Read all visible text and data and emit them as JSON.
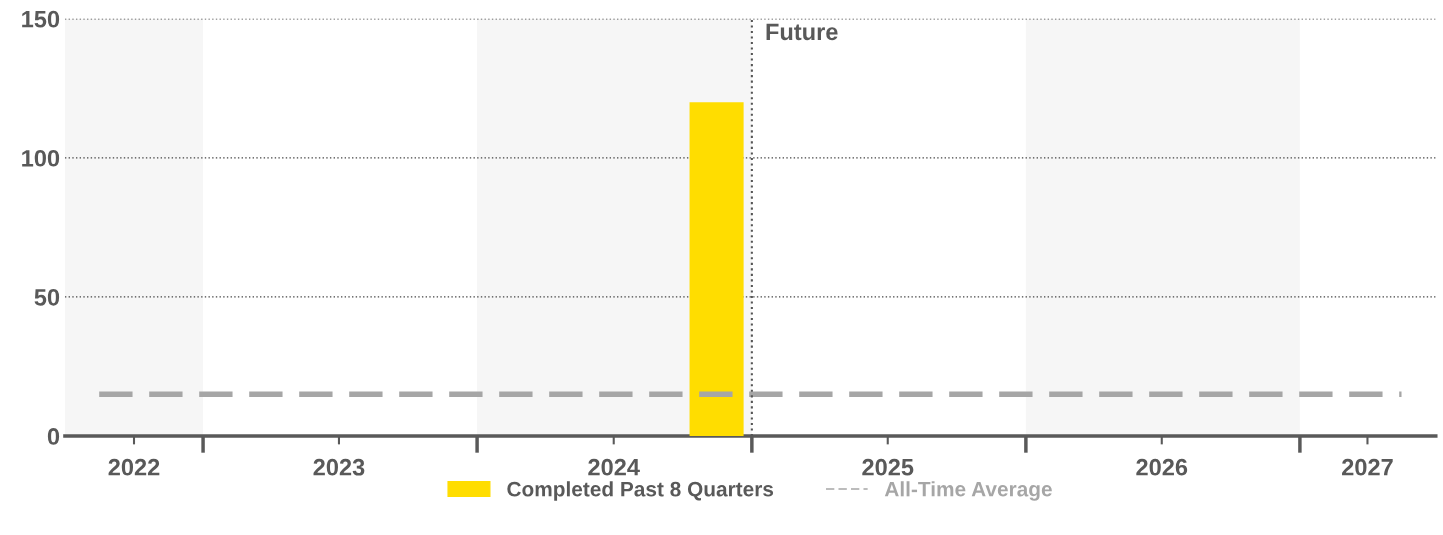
{
  "chart_data": {
    "type": "bar",
    "x": [
      "2024-11-15"
    ],
    "series": [
      {
        "name": "Completed Past 8 Quarters",
        "color": "#ffdd00",
        "values": [
          120
        ]
      }
    ],
    "xlim": [
      "2022-07-01",
      "2027-07-01"
    ],
    "xticks": [
      {
        "value": "2022-10-01",
        "label": "2022"
      },
      {
        "value": "2023-07-01",
        "label": "2023"
      },
      {
        "value": "2024-07-01",
        "label": "2024"
      },
      {
        "value": "2025-07-01",
        "label": "2025"
      },
      {
        "value": "2026-07-01",
        "label": "2026"
      },
      {
        "value": "2027-04-01",
        "label": "2027"
      }
    ],
    "ylim": [
      0,
      150
    ],
    "yticks": [
      0,
      50,
      100,
      150
    ],
    "grid": "y",
    "legend": "bottom",
    "ref_lines": [
      {
        "axis": "y",
        "value": 15,
        "label": "All-Time Average",
        "color": "#a6a6a6",
        "line_style": "dashed"
      },
      {
        "axis": "x",
        "value": "2025-01-01",
        "label": "Future",
        "color": "#555555",
        "line_style": "dotted"
      }
    ],
    "bands": [
      {
        "axis": "x",
        "from": "2022-07-01",
        "to": "2023-01-01",
        "color": "#f6f6f6"
      },
      {
        "axis": "x",
        "from": "2024-01-01",
        "to": "2025-01-01",
        "color": "#f6f6f6"
      },
      {
        "axis": "x",
        "from": "2026-01-01",
        "to": "2027-01-01",
        "color": "#f6f6f6"
      }
    ]
  }
}
